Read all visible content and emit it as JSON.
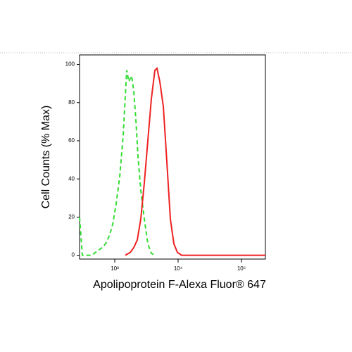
{
  "chart_data": {
    "type": "line",
    "xlabel": "Apolipoprotein F-Alexa Fluor® 647",
    "ylabel": "Cell Counts (% Max)",
    "xscale": "log",
    "xlim": [
      278,
      239000
    ],
    "ylim": [
      -2,
      105
    ],
    "xticks": [
      {
        "value": 1000,
        "label": "10³"
      },
      {
        "value": 10000,
        "label": "10⁴"
      },
      {
        "value": 100000,
        "label": "10⁵"
      }
    ],
    "yticks": [
      0,
      20,
      40,
      60,
      80,
      100
    ],
    "series": [
      {
        "color": "#33dd33",
        "dash": true,
        "x": [
          278,
          308,
          430,
          631,
          717,
          815,
          926,
          1052,
          1196,
          1359,
          1545,
          1668,
          1848,
          1995,
          2154,
          2326,
          2577,
          2929,
          3327,
          3781,
          4297
        ],
        "values": [
          20,
          0,
          0,
          4,
          6,
          10,
          16,
          27,
          41,
          63,
          97,
          91,
          94,
          86,
          71,
          52,
          34,
          19,
          6,
          1,
          0
        ]
      },
      {
        "color": "#ee2222",
        "dash": false,
        "x": [
          1468,
          1755,
          1995,
          2268,
          2577,
          2929,
          3327,
          3781,
          4297,
          4642,
          5140,
          5843,
          6640,
          7543,
          8577,
          9750,
          11360,
          239000
        ],
        "values": [
          0,
          1.5,
          4,
          8,
          19,
          38,
          60,
          82,
          97,
          98,
          91,
          78,
          49,
          19,
          6,
          1.5,
          0,
          0
        ]
      }
    ]
  }
}
